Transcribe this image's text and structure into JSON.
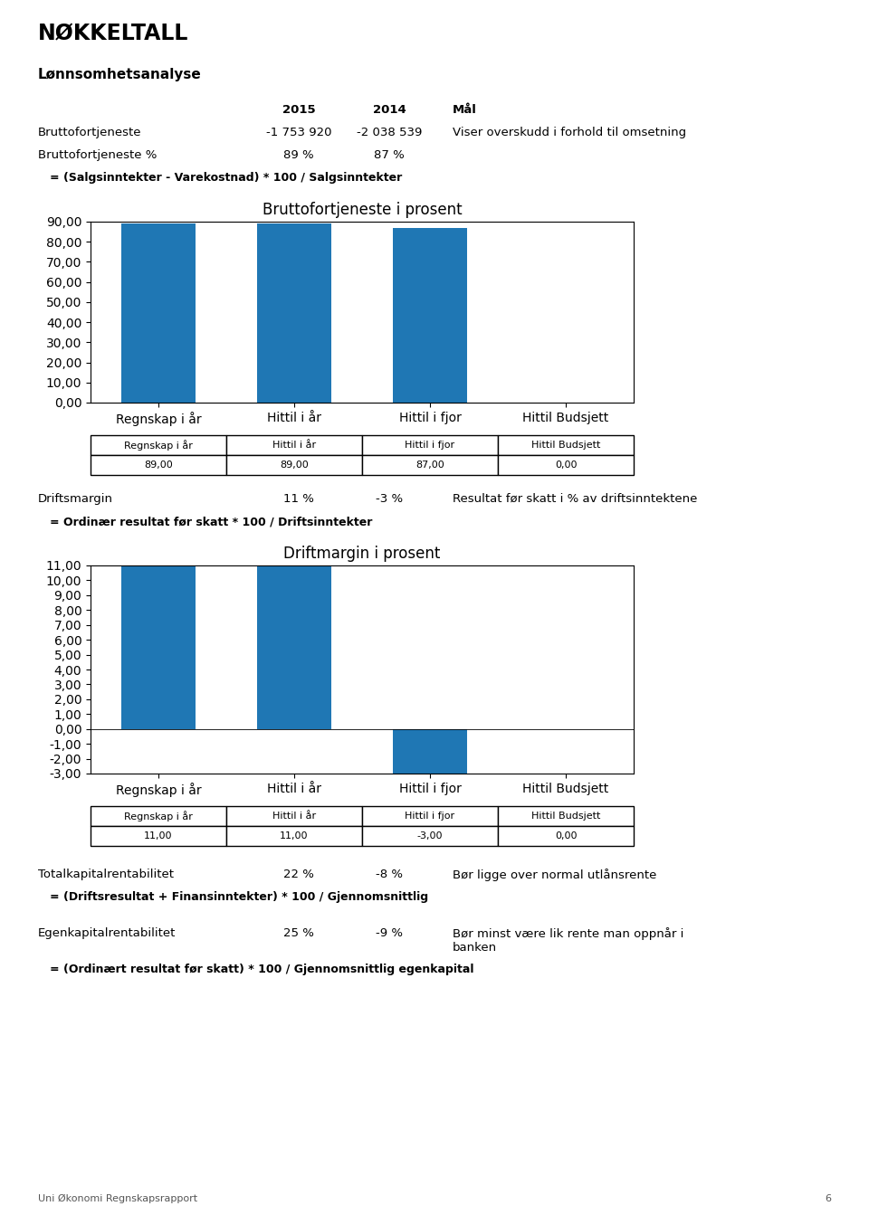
{
  "title": "NØKKELTALL",
  "subtitle": "Lønnsomhetsanalyse",
  "table_header": [
    "2015",
    "2014",
    "Mål"
  ],
  "tables": [
    {
      "rows": [
        [
          "Bruttofortjeneste",
          "-1 753 920",
          "-2 038 539",
          "Viser overskudd i forhold til omsetning"
        ],
        [
          "Bruttofortjeneste %",
          "89 %",
          "87 %"
        ]
      ],
      "formula": "= (Salgsinntekter - Varekostnad) * 100 / Salgsinntekter"
    },
    {
      "rows": [
        [
          "Driftsmargin",
          "11 %",
          "-3 %",
          "Resultat før skatt i % av driftsinntektene"
        ]
      ],
      "formula": "= Ordinær resultat før skatt * 100 / Driftsinntekter"
    },
    {
      "rows": [
        [
          "Totalkapitalrentabilitet",
          "22 %",
          "-8 %",
          "Bør ligge over normal utlånsrente"
        ]
      ],
      "formula": "= (Driftsresultat + Finansinntekter) * 100 / Gjennomsnittlig"
    },
    {
      "rows": [
        [
          "Egenkapitalrentabilitet",
          "25 %",
          "-9 %",
          "Bør minst være lik rente man oppnår i\nbanken"
        ]
      ],
      "formula": "= (Ordinært resultat før skatt) * 100 / Gjennomsnittlig egenkapital"
    }
  ],
  "footer": [
    "Uni Økonomi Regnskapsrapport",
    "6"
  ],
  "chart_data": [
    {
      "type": "bar",
      "title": "Bruttofortjeneste i prosent",
      "categories": [
        "Regnskap i år",
        "Hittil i år",
        "Hittil i fjor",
        "Hittil Budsjett"
      ],
      "values": [
        89.0,
        89.0,
        87.0,
        0.0
      ],
      "value_labels": [
        "89,00",
        "89,00",
        "87,00",
        "0,00"
      ],
      "data_labels": true,
      "ylim": [
        0.0,
        90.0
      ],
      "yticks": [
        {
          "value": 0.0,
          "label": "0,00"
        },
        {
          "value": 10.0,
          "label": "10,00"
        },
        {
          "value": 20.0,
          "label": "20,00"
        },
        {
          "value": 30.0,
          "label": "30,00"
        },
        {
          "value": 40.0,
          "label": "40,00"
        },
        {
          "value": 50.0,
          "label": "50,00"
        },
        {
          "value": 60.0,
          "label": "60,00"
        },
        {
          "value": 70.0,
          "label": "70,00"
        },
        {
          "value": 80.0,
          "label": "80,00"
        },
        {
          "value": 90.0,
          "label": "90,00"
        }
      ],
      "grid": false
    },
    {
      "type": "bar",
      "title": "Driftmargin i prosent",
      "categories": [
        "Regnskap i år",
        "Hittil i år",
        "Hittil i fjor",
        "Hittil Budsjett"
      ],
      "values": [
        11.0,
        11.0,
        -3.0,
        0.0
      ],
      "value_labels": [
        "11,00",
        "11,00",
        "-3,00",
        "0,00"
      ],
      "data_labels": true,
      "ylim": [
        -3.0,
        11.0
      ],
      "yticks": [
        {
          "value": -3.0,
          "label": "-3,00"
        },
        {
          "value": -2.0,
          "label": "-2,00"
        },
        {
          "value": -1.0,
          "label": "-1,00"
        },
        {
          "value": 0.0,
          "label": "0,00"
        },
        {
          "value": 1.0,
          "label": "1,00"
        },
        {
          "value": 2.0,
          "label": "2,00"
        },
        {
          "value": 3.0,
          "label": "3,00"
        },
        {
          "value": 4.0,
          "label": "4,00"
        },
        {
          "value": 5.0,
          "label": "5,00"
        },
        {
          "value": 6.0,
          "label": "6,00"
        },
        {
          "value": 7.0,
          "label": "7,00"
        },
        {
          "value": 8.0,
          "label": "8,00"
        },
        {
          "value": 9.0,
          "label": "9,00"
        },
        {
          "value": 10.0,
          "label": "10,00"
        },
        {
          "value": 11.0,
          "label": "11,00"
        }
      ],
      "grid": false
    }
  ]
}
